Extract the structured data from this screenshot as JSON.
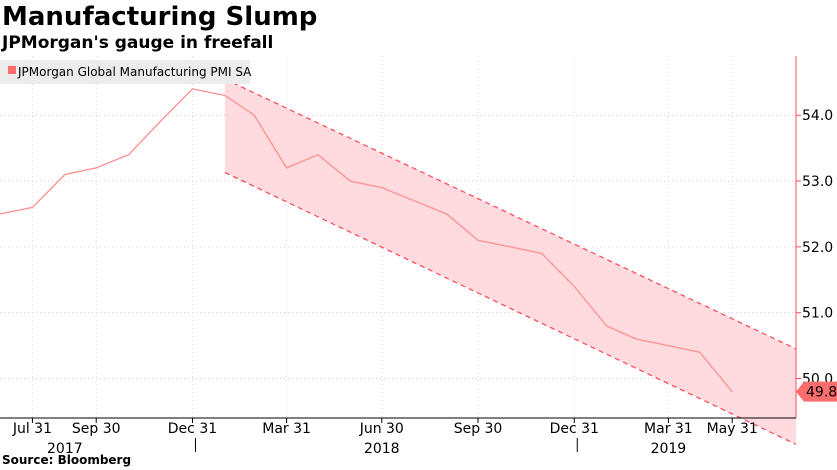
{
  "title": "Manufacturing Slump",
  "subtitle": "JPMorgan's gauge in freefall",
  "source": "Source: Bloomberg",
  "colors": {
    "line": "#ff8f8f",
    "channel_fill": "#ffdbe0",
    "channel_edge": "#ff4d5e",
    "last_value_badge": "#ff6d6d",
    "legend_bg": "#ececec",
    "legend_swatch": "#ff6d6d"
  },
  "chart_data": {
    "type": "line",
    "title": "Manufacturing Slump",
    "subtitle": "JPMorgan's gauge in freefall",
    "legend_position": "top-left",
    "grid": true,
    "ylim": [
      49.4,
      54.9
    ],
    "yticks": [
      "50.0",
      "51.0",
      "52.0",
      "53.0",
      "54.0"
    ],
    "x_tick_labels": [
      "Jul 31",
      "Sep 30",
      "Dec 31",
      "Mar 31",
      "Jun 30",
      "Sep 30",
      "Dec 31",
      "Mar 31",
      "May 31"
    ],
    "x_year_labels": [
      "2017",
      "2018",
      "2019"
    ],
    "series": [
      {
        "name": "JPMorgan Global Manufacturing PMI SA",
        "x": [
          "2017-06-30",
          "2017-07-31",
          "2017-08-31",
          "2017-09-30",
          "2017-10-31",
          "2017-11-30",
          "2017-12-31",
          "2018-01-31",
          "2018-02-28",
          "2018-03-31",
          "2018-04-30",
          "2018-05-31",
          "2018-06-30",
          "2018-07-31",
          "2018-08-31",
          "2018-09-30",
          "2018-10-31",
          "2018-11-30",
          "2018-12-31",
          "2019-01-31",
          "2019-02-28",
          "2019-03-31",
          "2019-04-30",
          "2019-05-31"
        ],
        "values": [
          52.5,
          52.6,
          53.1,
          53.2,
          53.4,
          53.9,
          54.4,
          54.3,
          54.0,
          53.2,
          53.4,
          53.0,
          52.9,
          52.7,
          52.5,
          52.1,
          52.0,
          51.9,
          51.4,
          50.8,
          50.6,
          50.5,
          50.4,
          49.8
        ],
        "last_value_label": "49.8"
      }
    ],
    "annotations": [
      {
        "type": "channel",
        "start": "2018-01-31",
        "end": "2019-07-31",
        "upper": [
          54.55,
          50.45
        ],
        "lower": [
          53.13,
          49.0
        ]
      }
    ]
  }
}
